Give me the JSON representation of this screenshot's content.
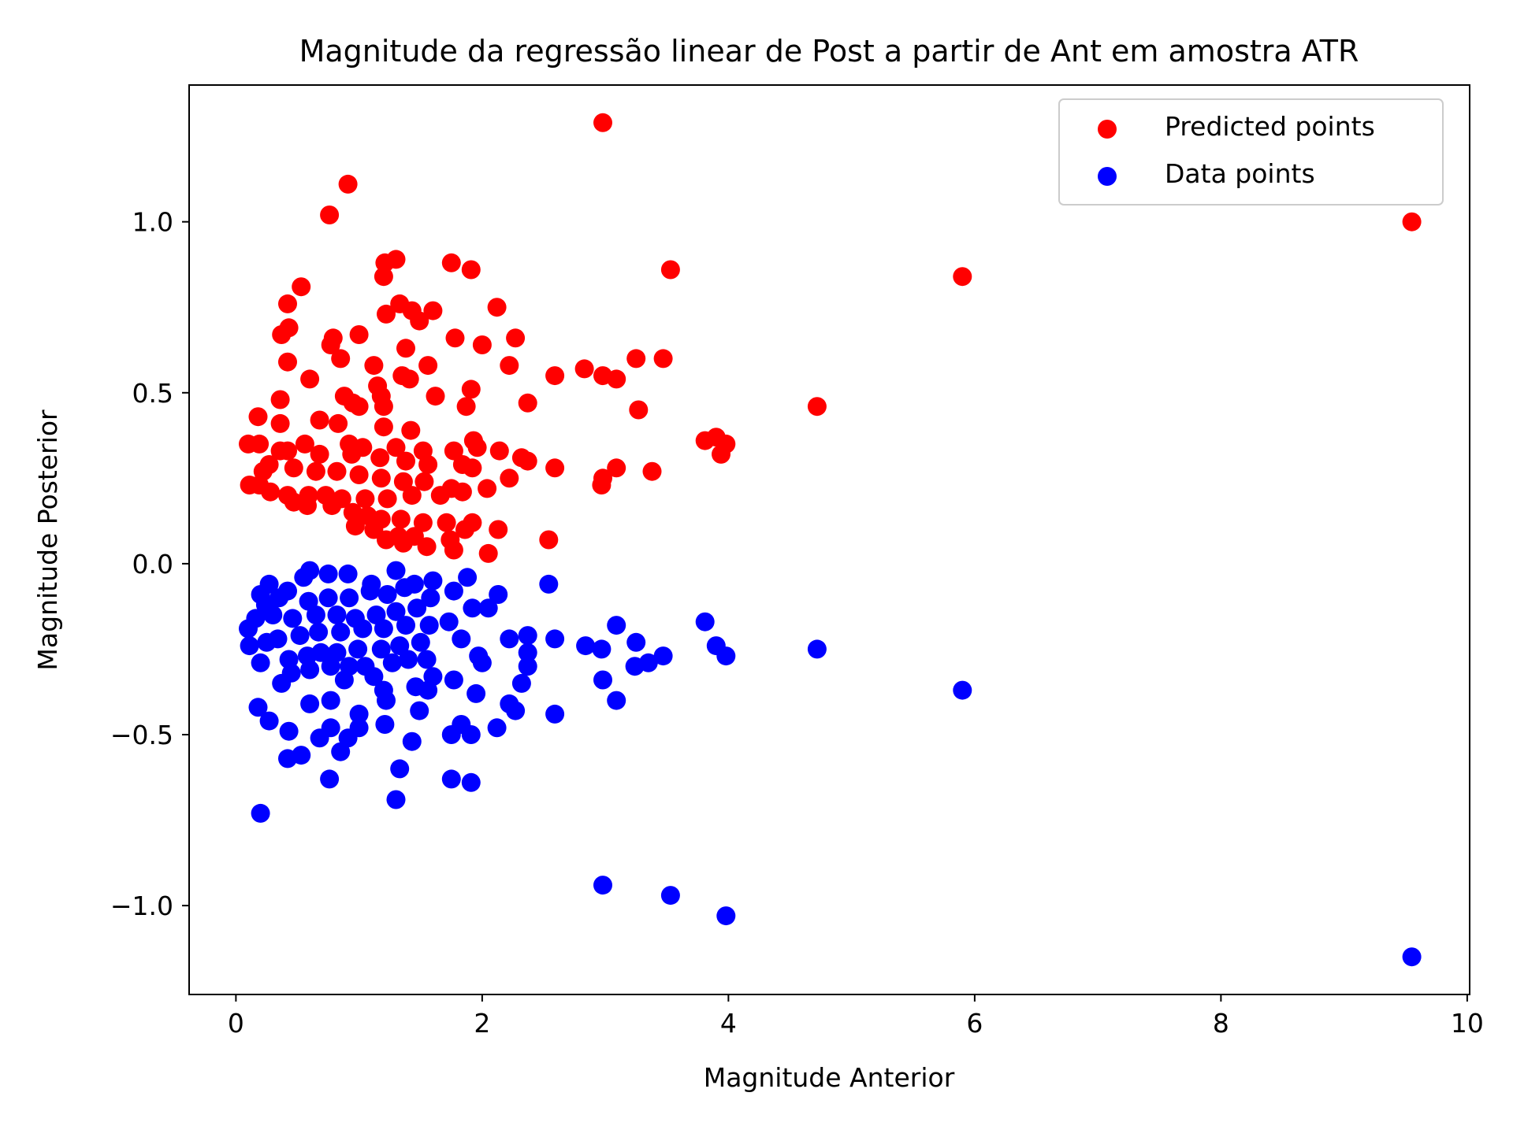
{
  "chart_data": {
    "type": "scatter",
    "title": "Magnitude da regressão linear de Post a partir de Ant em amostra ATR",
    "xlabel": "Magnitude Anterior",
    "ylabel": "Magnitude Posterior",
    "xlim": [
      -0.38,
      10.02
    ],
    "ylim": [
      -1.26,
      1.4
    ],
    "xticks": [
      0,
      2,
      4,
      6,
      8,
      10
    ],
    "xtick_labels": [
      "0",
      "2",
      "4",
      "6",
      "8",
      "10"
    ],
    "yticks": [
      1.0,
      0.5,
      0.0,
      -0.5,
      -1.0
    ],
    "ytick_labels": [
      "1.0",
      "0.5",
      "0.0",
      "−0.5",
      "−1.0"
    ],
    "grid": false,
    "legend_position": "top-right",
    "series": [
      {
        "name": "Predicted points",
        "color": "#ff0000",
        "points": [
          [
            2.98,
            1.29
          ],
          [
            9.55,
            1.0
          ],
          [
            0.91,
            1.11
          ],
          [
            0.76,
            1.02
          ],
          [
            5.9,
            0.84
          ],
          [
            3.53,
            0.86
          ],
          [
            1.3,
            0.89
          ],
          [
            1.21,
            0.88
          ],
          [
            1.75,
            0.88
          ],
          [
            1.91,
            0.86
          ],
          [
            1.2,
            0.84
          ],
          [
            0.53,
            0.81
          ],
          [
            0.42,
            0.76
          ],
          [
            2.12,
            0.75
          ],
          [
            1.33,
            0.76
          ],
          [
            1.43,
            0.74
          ],
          [
            1.6,
            0.74
          ],
          [
            1.22,
            0.73
          ],
          [
            1.49,
            0.71
          ],
          [
            0.43,
            0.69
          ],
          [
            0.37,
            0.67
          ],
          [
            0.79,
            0.66
          ],
          [
            1.0,
            0.67
          ],
          [
            2.27,
            0.66
          ],
          [
            1.78,
            0.66
          ],
          [
            2.0,
            0.64
          ],
          [
            0.77,
            0.64
          ],
          [
            1.38,
            0.63
          ],
          [
            0.85,
            0.6
          ],
          [
            3.25,
            0.6
          ],
          [
            3.47,
            0.6
          ],
          [
            0.42,
            0.59
          ],
          [
            1.12,
            0.58
          ],
          [
            2.22,
            0.58
          ],
          [
            1.56,
            0.58
          ],
          [
            2.83,
            0.57
          ],
          [
            2.98,
            0.55
          ],
          [
            2.59,
            0.55
          ],
          [
            3.09,
            0.54
          ],
          [
            1.35,
            0.55
          ],
          [
            1.41,
            0.54
          ],
          [
            0.6,
            0.54
          ],
          [
            1.15,
            0.52
          ],
          [
            1.18,
            0.49
          ],
          [
            0.88,
            0.49
          ],
          [
            1.62,
            0.49
          ],
          [
            1.91,
            0.51
          ],
          [
            2.37,
            0.47
          ],
          [
            1.87,
            0.46
          ],
          [
            0.36,
            0.48
          ],
          [
            1.0,
            0.46
          ],
          [
            0.95,
            0.47
          ],
          [
            1.2,
            0.46
          ],
          [
            4.72,
            0.46
          ],
          [
            3.27,
            0.45
          ],
          [
            0.18,
            0.43
          ],
          [
            0.36,
            0.41
          ],
          [
            0.68,
            0.42
          ],
          [
            0.83,
            0.41
          ],
          [
            1.2,
            0.4
          ],
          [
            1.42,
            0.39
          ],
          [
            3.9,
            0.37
          ],
          [
            3.81,
            0.36
          ],
          [
            3.98,
            0.35
          ],
          [
            3.94,
            0.32
          ],
          [
            1.93,
            0.36
          ],
          [
            0.56,
            0.35
          ],
          [
            0.1,
            0.35
          ],
          [
            0.92,
            0.35
          ],
          [
            0.19,
            0.35
          ],
          [
            1.03,
            0.34
          ],
          [
            1.3,
            0.34
          ],
          [
            1.52,
            0.33
          ],
          [
            1.77,
            0.33
          ],
          [
            1.96,
            0.34
          ],
          [
            2.14,
            0.33
          ],
          [
            2.32,
            0.31
          ],
          [
            2.37,
            0.3
          ],
          [
            0.42,
            0.33
          ],
          [
            0.36,
            0.33
          ],
          [
            0.68,
            0.32
          ],
          [
            0.94,
            0.32
          ],
          [
            1.17,
            0.31
          ],
          [
            1.38,
            0.3
          ],
          [
            1.56,
            0.29
          ],
          [
            1.84,
            0.29
          ],
          [
            1.92,
            0.28
          ],
          [
            2.59,
            0.28
          ],
          [
            3.09,
            0.28
          ],
          [
            3.38,
            0.27
          ],
          [
            2.98,
            0.25
          ],
          [
            2.22,
            0.25
          ],
          [
            2.97,
            0.23
          ],
          [
            0.22,
            0.27
          ],
          [
            0.27,
            0.29
          ],
          [
            0.47,
            0.28
          ],
          [
            0.65,
            0.27
          ],
          [
            0.82,
            0.27
          ],
          [
            1.0,
            0.26
          ],
          [
            1.18,
            0.25
          ],
          [
            1.36,
            0.24
          ],
          [
            1.53,
            0.24
          ],
          [
            1.75,
            0.22
          ],
          [
            1.84,
            0.21
          ],
          [
            2.04,
            0.22
          ],
          [
            0.11,
            0.23
          ],
          [
            0.19,
            0.23
          ],
          [
            0.28,
            0.21
          ],
          [
            0.42,
            0.2
          ],
          [
            0.59,
            0.2
          ],
          [
            0.73,
            0.2
          ],
          [
            0.86,
            0.19
          ],
          [
            1.05,
            0.19
          ],
          [
            1.23,
            0.19
          ],
          [
            1.43,
            0.2
          ],
          [
            1.66,
            0.2
          ],
          [
            0.47,
            0.18
          ],
          [
            0.58,
            0.17
          ],
          [
            0.78,
            0.17
          ],
          [
            0.95,
            0.15
          ],
          [
            1.07,
            0.14
          ],
          [
            1.18,
            0.13
          ],
          [
            1.34,
            0.13
          ],
          [
            1.52,
            0.12
          ],
          [
            1.71,
            0.12
          ],
          [
            1.92,
            0.12
          ],
          [
            2.13,
            0.1
          ],
          [
            0.97,
            0.11
          ],
          [
            1.12,
            0.1
          ],
          [
            1.32,
            0.08
          ],
          [
            1.45,
            0.08
          ],
          [
            1.86,
            0.1
          ],
          [
            1.74,
            0.07
          ],
          [
            1.22,
            0.07
          ],
          [
            1.36,
            0.06
          ],
          [
            1.55,
            0.05
          ],
          [
            1.77,
            0.04
          ],
          [
            2.05,
            0.03
          ],
          [
            2.54,
            0.07
          ]
        ]
      },
      {
        "name": "Data points",
        "color": "#0000ff",
        "points": [
          [
            9.55,
            -1.15
          ],
          [
            3.98,
            -1.03
          ],
          [
            3.53,
            -0.97
          ],
          [
            2.98,
            -0.94
          ],
          [
            5.9,
            -0.37
          ],
          [
            4.72,
            -0.25
          ],
          [
            0.2,
            -0.73
          ],
          [
            1.3,
            -0.69
          ],
          [
            0.76,
            -0.63
          ],
          [
            1.75,
            -0.63
          ],
          [
            1.91,
            -0.64
          ],
          [
            1.33,
            -0.6
          ],
          [
            0.42,
            -0.57
          ],
          [
            0.53,
            -0.56
          ],
          [
            0.85,
            -0.55
          ],
          [
            1.43,
            -0.52
          ],
          [
            0.68,
            -0.51
          ],
          [
            0.91,
            -0.51
          ],
          [
            1.75,
            -0.5
          ],
          [
            1.91,
            -0.5
          ],
          [
            0.43,
            -0.49
          ],
          [
            0.77,
            -0.48
          ],
          [
            1.0,
            -0.48
          ],
          [
            1.21,
            -0.47
          ],
          [
            1.83,
            -0.47
          ],
          [
            2.12,
            -0.48
          ],
          [
            0.27,
            -0.46
          ],
          [
            1.0,
            -0.44
          ],
          [
            1.49,
            -0.43
          ],
          [
            0.18,
            -0.42
          ],
          [
            0.6,
            -0.41
          ],
          [
            2.27,
            -0.43
          ],
          [
            2.59,
            -0.44
          ],
          [
            2.22,
            -0.41
          ],
          [
            3.09,
            -0.4
          ],
          [
            0.77,
            -0.4
          ],
          [
            1.22,
            -0.4
          ],
          [
            1.56,
            -0.37
          ],
          [
            1.95,
            -0.38
          ],
          [
            1.2,
            -0.37
          ],
          [
            1.46,
            -0.36
          ],
          [
            2.32,
            -0.35
          ],
          [
            2.98,
            -0.34
          ],
          [
            0.37,
            -0.35
          ],
          [
            0.88,
            -0.34
          ],
          [
            1.12,
            -0.33
          ],
          [
            1.6,
            -0.33
          ],
          [
            1.77,
            -0.34
          ],
          [
            3.24,
            -0.3
          ],
          [
            3.35,
            -0.29
          ],
          [
            3.47,
            -0.27
          ],
          [
            2.37,
            -0.3
          ],
          [
            0.45,
            -0.32
          ],
          [
            0.6,
            -0.31
          ],
          [
            0.77,
            -0.3
          ],
          [
            0.92,
            -0.3
          ],
          [
            1.05,
            -0.3
          ],
          [
            1.27,
            -0.29
          ],
          [
            1.4,
            -0.28
          ],
          [
            1.55,
            -0.28
          ],
          [
            2.0,
            -0.29
          ],
          [
            0.2,
            -0.29
          ],
          [
            0.43,
            -0.28
          ],
          [
            0.58,
            -0.27
          ],
          [
            0.69,
            -0.26
          ],
          [
            0.82,
            -0.26
          ],
          [
            0.99,
            -0.25
          ],
          [
            1.18,
            -0.25
          ],
          [
            1.33,
            -0.24
          ],
          [
            1.5,
            -0.23
          ],
          [
            1.97,
            -0.27
          ],
          [
            2.37,
            -0.26
          ],
          [
            2.84,
            -0.24
          ],
          [
            2.97,
            -0.25
          ],
          [
            3.25,
            -0.23
          ],
          [
            3.9,
            -0.24
          ],
          [
            3.98,
            -0.27
          ],
          [
            0.11,
            -0.24
          ],
          [
            0.25,
            -0.23
          ],
          [
            0.34,
            -0.22
          ],
          [
            0.52,
            -0.21
          ],
          [
            0.67,
            -0.2
          ],
          [
            0.85,
            -0.2
          ],
          [
            1.03,
            -0.19
          ],
          [
            1.2,
            -0.19
          ],
          [
            1.38,
            -0.18
          ],
          [
            1.57,
            -0.18
          ],
          [
            1.83,
            -0.22
          ],
          [
            2.22,
            -0.22
          ],
          [
            2.59,
            -0.22
          ],
          [
            2.37,
            -0.21
          ],
          [
            0.1,
            -0.19
          ],
          [
            0.16,
            -0.16
          ],
          [
            0.3,
            -0.15
          ],
          [
            0.46,
            -0.16
          ],
          [
            0.65,
            -0.15
          ],
          [
            0.82,
            -0.15
          ],
          [
            0.97,
            -0.16
          ],
          [
            1.14,
            -0.15
          ],
          [
            1.3,
            -0.14
          ],
          [
            1.47,
            -0.13
          ],
          [
            1.73,
            -0.17
          ],
          [
            1.92,
            -0.13
          ],
          [
            2.05,
            -0.13
          ],
          [
            3.09,
            -0.18
          ],
          [
            3.81,
            -0.17
          ],
          [
            0.24,
            -0.12
          ],
          [
            0.35,
            -0.1
          ],
          [
            0.42,
            -0.08
          ],
          [
            0.59,
            -0.11
          ],
          [
            0.75,
            -0.1
          ],
          [
            0.92,
            -0.1
          ],
          [
            1.09,
            -0.08
          ],
          [
            1.23,
            -0.09
          ],
          [
            1.37,
            -0.07
          ],
          [
            1.58,
            -0.1
          ],
          [
            1.77,
            -0.08
          ],
          [
            2.13,
            -0.09
          ],
          [
            0.2,
            -0.09
          ],
          [
            0.27,
            -0.06
          ],
          [
            0.55,
            -0.04
          ],
          [
            0.6,
            -0.02
          ],
          [
            0.75,
            -0.03
          ],
          [
            0.91,
            -0.03
          ],
          [
            1.1,
            -0.06
          ],
          [
            1.3,
            -0.02
          ],
          [
            1.45,
            -0.06
          ],
          [
            1.6,
            -0.05
          ],
          [
            1.88,
            -0.04
          ],
          [
            2.54,
            -0.06
          ]
        ]
      }
    ]
  }
}
